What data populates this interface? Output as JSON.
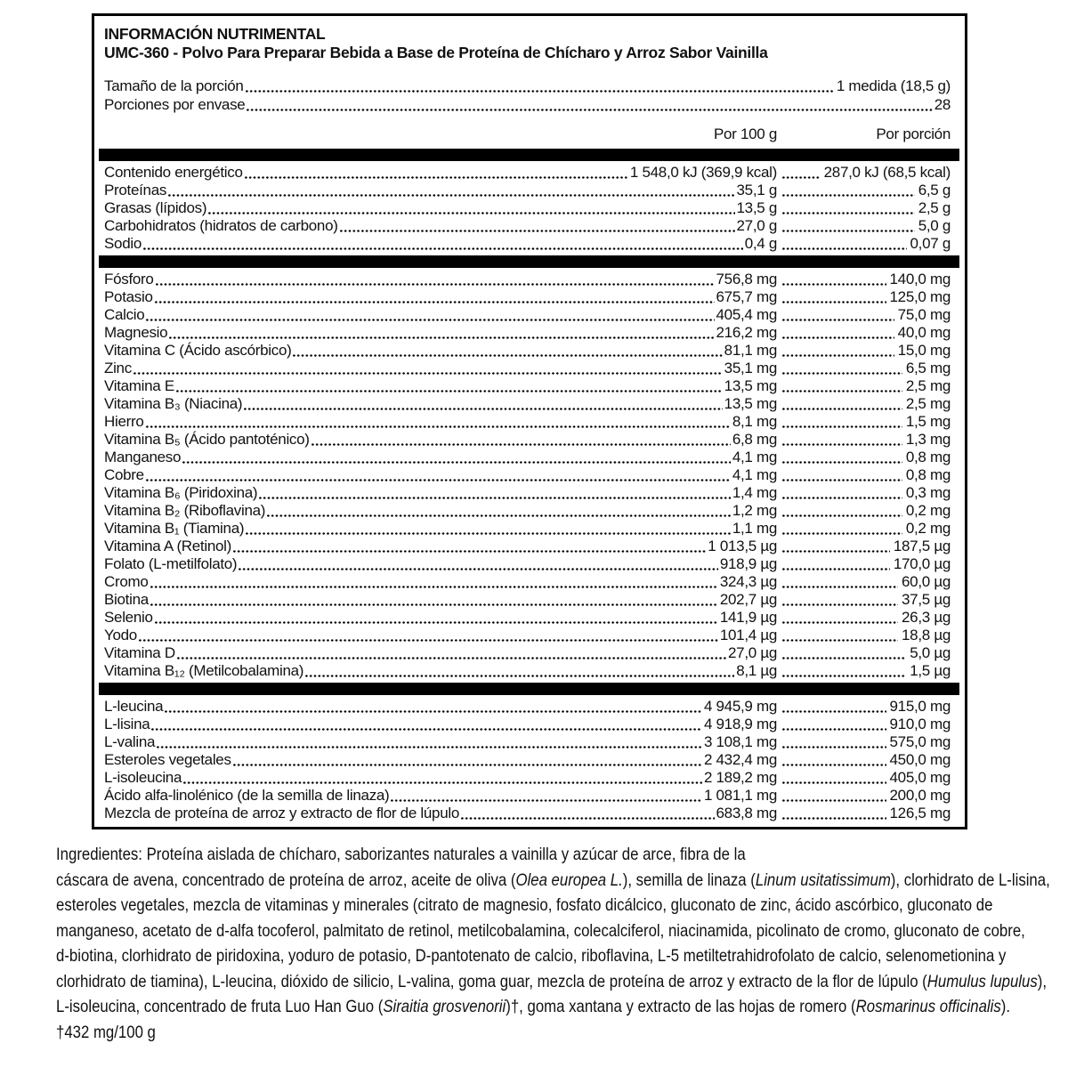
{
  "panel": {
    "title": "INFORMACIÓN NUTRIMENTAL",
    "subtitle": "UMC-360 - Polvo Para Preparar Bebida a Base de Proteína de Chícharo y Arroz Sabor Vainilla",
    "columns": {
      "per_100g": "Por 100 g",
      "per_portion": "Por porción"
    }
  },
  "serving": {
    "rows": [
      {
        "label": "Tamaño de la porción",
        "value": "1 medida (18,5 g)"
      },
      {
        "label": "Porciones por envase",
        "value": "28"
      }
    ]
  },
  "sections": [
    {
      "rows": [
        {
          "label": "Contenido energético",
          "per_100g": "1 548,0 kJ (369,9 kcal)",
          "per_portion": "287,0 kJ (68,5 kcal)"
        },
        {
          "label": "Proteínas",
          "per_100g": "35,1 g",
          "per_portion": "6,5 g"
        },
        {
          "label": "Grasas (lípidos)",
          "per_100g": "13,5 g",
          "per_portion": "2,5 g"
        },
        {
          "label": "Carbohidratos (hidratos de carbono)",
          "per_100g": "27,0 g",
          "per_portion": "5,0 g"
        },
        {
          "label": "Sodio",
          "per_100g": "0,4 g",
          "per_portion": "0,07 g"
        }
      ]
    },
    {
      "rows": [
        {
          "label": "Fósforo",
          "per_100g": "756,8 mg",
          "per_portion": "140,0 mg"
        },
        {
          "label": "Potasio",
          "per_100g": "675,7 mg",
          "per_portion": "125,0 mg"
        },
        {
          "label": "Calcio",
          "per_100g": "405,4 mg",
          "per_portion": "75,0 mg"
        },
        {
          "label": "Magnesio",
          "per_100g": "216,2 mg",
          "per_portion": "40,0 mg"
        },
        {
          "label": "Vitamina C (Ácido ascórbico)",
          "per_100g": "81,1 mg",
          "per_portion": "15,0 mg"
        },
        {
          "label": "Zinc",
          "per_100g": "35,1 mg",
          "per_portion": "6,5 mg"
        },
        {
          "label": "Vitamina E",
          "per_100g": "13,5 mg",
          "per_portion": "2,5 mg"
        },
        {
          "label": "Vitamina B₃ (Niacina)",
          "per_100g": "13,5 mg",
          "per_portion": "2,5 mg"
        },
        {
          "label": "Hierro",
          "per_100g": "8,1 mg",
          "per_portion": "1,5 mg"
        },
        {
          "label": "Vitamina B₅ (Ácido pantoténico)",
          "per_100g": "6,8 mg",
          "per_portion": "1,3 mg"
        },
        {
          "label": "Manganeso",
          "per_100g": "4,1 mg",
          "per_portion": "0,8 mg"
        },
        {
          "label": "Cobre",
          "per_100g": "4,1 mg",
          "per_portion": "0,8 mg"
        },
        {
          "label": "Vitamina B₆ (Piridoxina)",
          "per_100g": "1,4 mg",
          "per_portion": "0,3 mg"
        },
        {
          "label": "Vitamina B₂ (Riboflavina)",
          "per_100g": "1,2 mg",
          "per_portion": "0,2 mg"
        },
        {
          "label": "Vitamina B₁ (Tiamina)",
          "per_100g": "1,1 mg",
          "per_portion": "0,2 mg"
        },
        {
          "label": "Vitamina A (Retinol)",
          "per_100g": "1 013,5 µg",
          "per_portion": "187,5 µg"
        },
        {
          "label": "Folato (L-metilfolato)",
          "per_100g": "918,9 µg",
          "per_portion": "170,0 µg"
        },
        {
          "label": "Cromo",
          "per_100g": "324,3 µg",
          "per_portion": "60,0 µg"
        },
        {
          "label": "Biotina",
          "per_100g": "202,7 µg",
          "per_portion": "37,5 µg"
        },
        {
          "label": "Selenio",
          "per_100g": "141,9 µg",
          "per_portion": "26,3 µg"
        },
        {
          "label": "Yodo",
          "per_100g": "101,4 µg",
          "per_portion": "18,8 µg"
        },
        {
          "label": "Vitamina D",
          "per_100g": "27,0 µg",
          "per_portion": "5,0 µg"
        },
        {
          "label": "Vitamina B₁₂ (Metilcobalamina)",
          "per_100g": "8,1 µg",
          "per_portion": "1,5 µg"
        }
      ]
    },
    {
      "rows": [
        {
          "label": "L-leucina",
          "per_100g": "4 945,9 mg",
          "per_portion": "915,0 mg"
        },
        {
          "label": "L-lisina",
          "per_100g": "4 918,9 mg",
          "per_portion": "910,0 mg"
        },
        {
          "label": "L-valina",
          "per_100g": "3 108,1 mg",
          "per_portion": "575,0 mg"
        },
        {
          "label": "Esteroles vegetales",
          "per_100g": "2 432,4 mg",
          "per_portion": "450,0 mg"
        },
        {
          "label": "L-isoleucina",
          "per_100g": "2 189,2 mg",
          "per_portion": "405,0 mg"
        },
        {
          "label": "Ácido alfa-linolénico (de la semilla de linaza)",
          "per_100g": "1 081,1 mg",
          "per_portion": "200,0 mg"
        },
        {
          "label": "Mezcla de proteína de arroz y extracto de flor de lúpulo",
          "per_100g": "683,8 mg",
          "per_portion": "126,5 mg"
        }
      ]
    }
  ],
  "ingredients": {
    "lines": [
      [
        {
          "t": "Ingredientes: Proteína aislada de chícharo, saborizantes naturales a vainilla y azúcar de arce, fibra de la"
        }
      ],
      [
        {
          "t": "cáscara de avena, concentrado de proteína de arroz, aceite de oliva ("
        },
        {
          "t": "Olea europea L.",
          "i": true
        },
        {
          "t": "), semilla de linaza ("
        },
        {
          "t": "Linum usitatissimum",
          "i": true
        },
        {
          "t": "), clorhidrato de L-lisina,"
        }
      ],
      [
        {
          "t": "esteroles vegetales, mezcla de vitaminas y minerales (citrato de magnesio, fosfato dicálcico, gluconato de zinc, ácido ascórbico, gluconato de"
        }
      ],
      [
        {
          "t": "manganeso, acetato de d-alfa tocoferol, palmitato de retinol, metilcobalamina, colecalciferol, niacinamida, picolinato de cromo, gluconato de cobre,"
        }
      ],
      [
        {
          "t": "d-biotina, clorhidrato de piridoxina, yoduro de potasio, D-pantotenato de calcio, riboflavina, L-5 metiltetrahidrofolato de calcio, selenometionina y"
        }
      ],
      [
        {
          "t": "clorhidrato de tiamina), L-leucina, dióxido de silicio, L-valina, goma guar, mezcla de proteína de arroz y extracto de la flor de lúpulo ("
        },
        {
          "t": "Humulus lupulus",
          "i": true
        },
        {
          "t": "),"
        }
      ],
      [
        {
          "t": "L-isoleucina, concentrado de fruta Luo Han Guo ("
        },
        {
          "t": "Siraitia grosvenorii",
          "i": true
        },
        {
          "t": ")†, goma xantana y extracto de las hojas de romero ("
        },
        {
          "t": "Rosmarinus officinalis",
          "i": true
        },
        {
          "t": ")."
        }
      ]
    ],
    "footnote": "†432 mg/100 g"
  },
  "colors": {
    "text": "#111111",
    "bar": "#000000",
    "border": "#000000",
    "background": "#ffffff"
  }
}
